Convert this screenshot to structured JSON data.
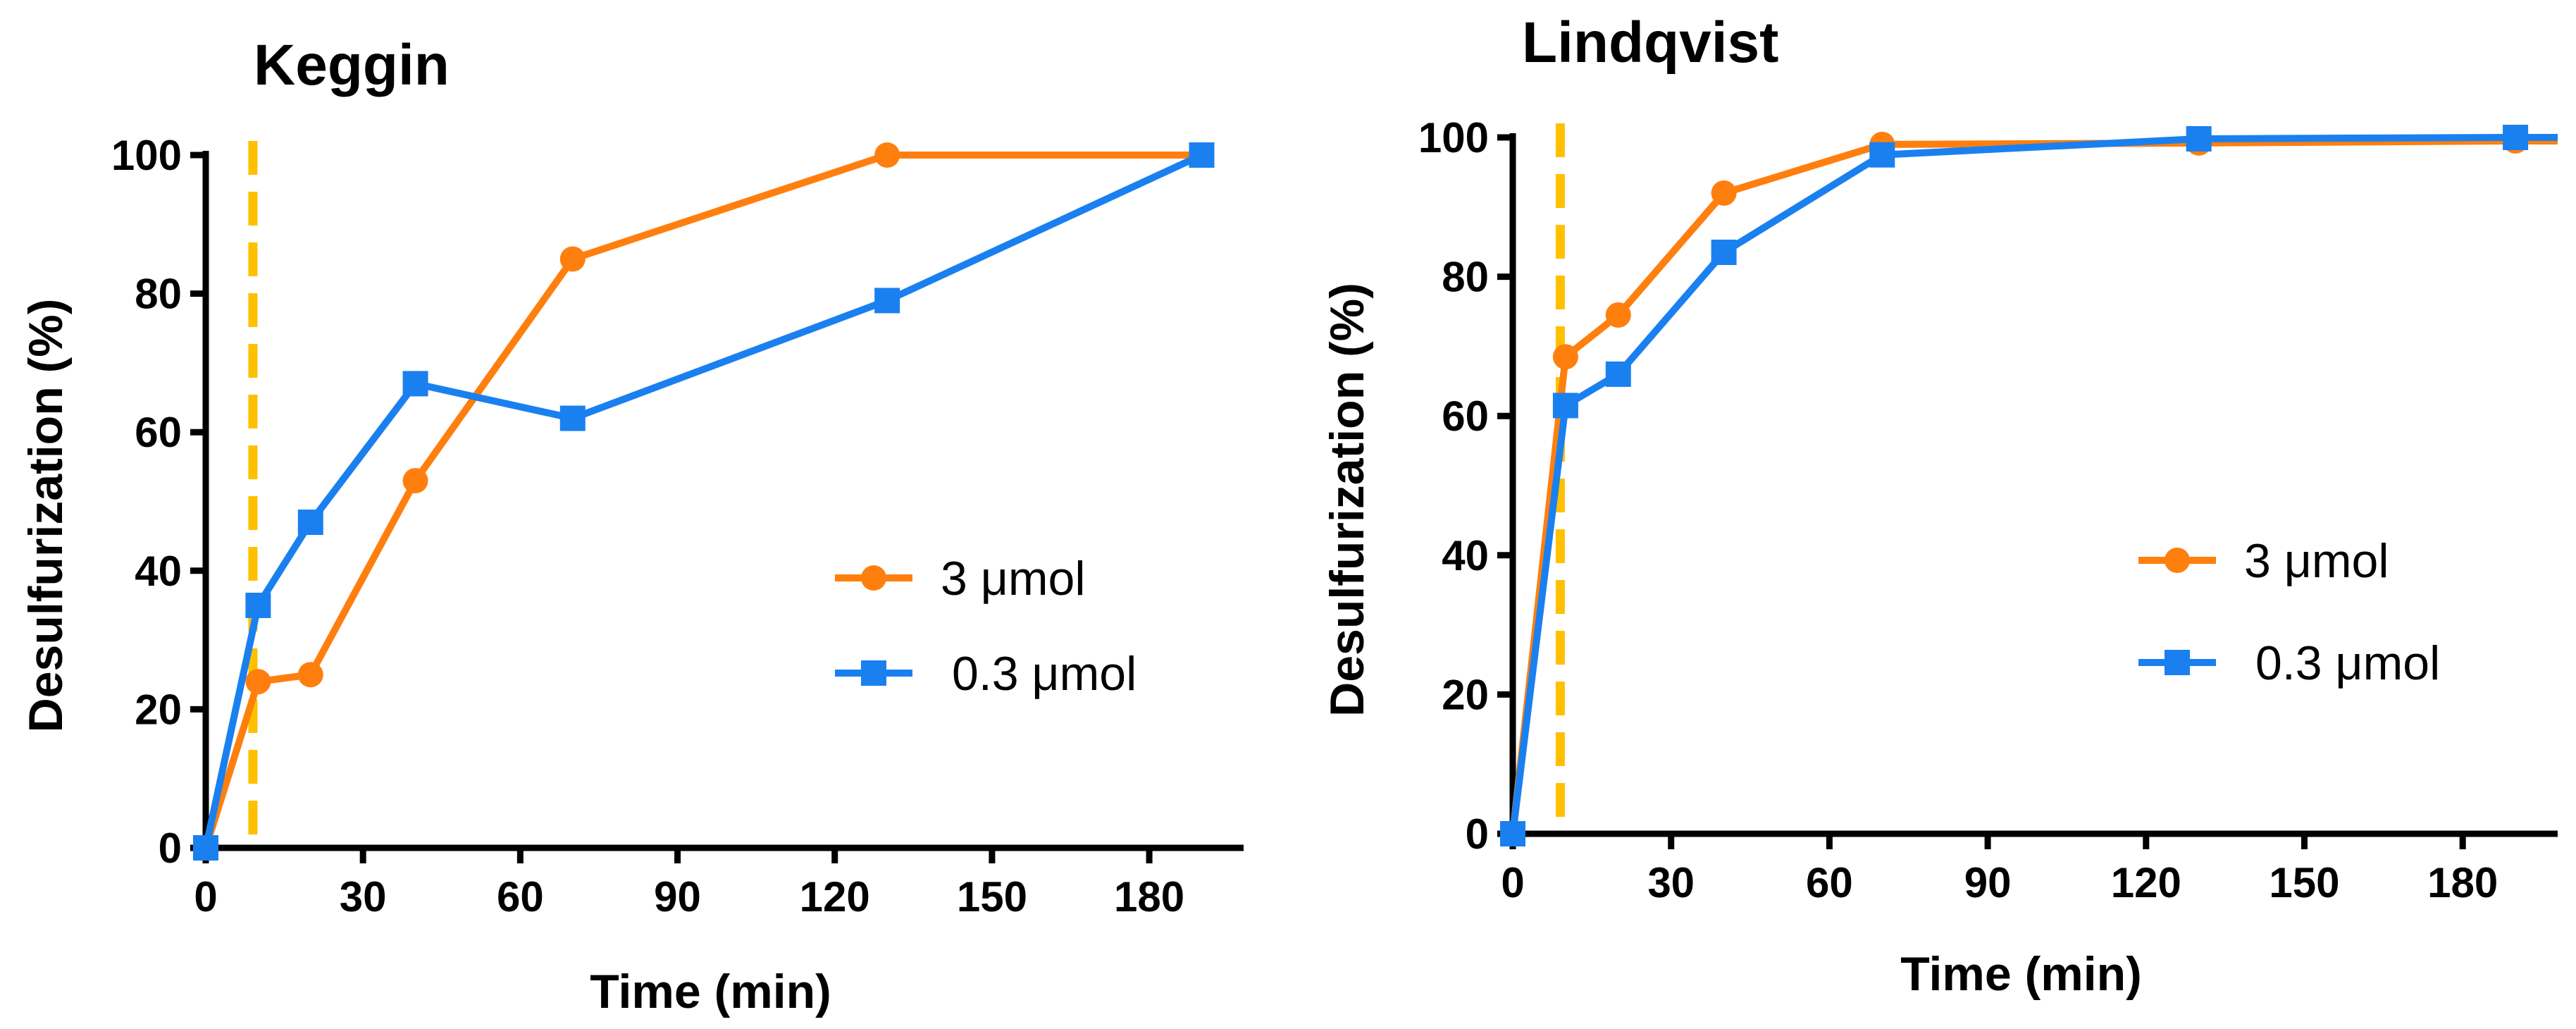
{
  "chart_data": [
    {
      "type": "line",
      "title": "Keggin",
      "xlabel": "Time (min)",
      "ylabel": "Desulfurization (%)",
      "xlim": [
        0,
        198
      ],
      "ylim": [
        0,
        100
      ],
      "xticks": [
        0,
        30,
        60,
        90,
        120,
        150,
        180
      ],
      "yticks": [
        0,
        20,
        40,
        60,
        80,
        100
      ],
      "legend_position": "center-right",
      "reference_line": {
        "x": 9,
        "style": "dashed",
        "color": "#FFC000"
      },
      "series": [
        {
          "name": "3 μmol",
          "marker": "circle",
          "color": "#FF7F0E",
          "x": [
            0,
            10,
            20,
            40,
            70,
            130,
            190
          ],
          "y": [
            0,
            24,
            25,
            53,
            85,
            100,
            100
          ]
        },
        {
          "name": "0.3 μmol",
          "marker": "square",
          "color": "#1A80F0",
          "x": [
            0,
            10,
            20,
            40,
            70,
            130,
            190
          ],
          "y": [
            0,
            35,
            47,
            67,
            62,
            79,
            100
          ]
        }
      ]
    },
    {
      "type": "line",
      "title": "Lindqvist",
      "xlabel": "Time (min)",
      "ylabel": "Desulfurization (%)",
      "xlim": [
        0,
        198
      ],
      "ylim": [
        0,
        100
      ],
      "xticks": [
        0,
        30,
        60,
        90,
        120,
        150,
        180
      ],
      "yticks": [
        0,
        20,
        40,
        60,
        80,
        100
      ],
      "legend_position": "center-right",
      "reference_line": {
        "x": 9,
        "style": "dashed",
        "color": "#FFC000"
      },
      "series": [
        {
          "name": "3 μmol",
          "marker": "circle",
          "color": "#FF7F0E",
          "x": [
            0,
            10,
            20,
            40,
            70,
            130,
            190,
            198
          ],
          "y": [
            0,
            68.5,
            74.5,
            92,
            99,
            99.2,
            99.5,
            99.5
          ]
        },
        {
          "name": "0.3 μmol",
          "marker": "square",
          "color": "#1A80F0",
          "x": [
            0,
            10,
            20,
            40,
            70,
            130,
            190,
            198
          ],
          "y": [
            0,
            61.5,
            66,
            83.5,
            97.5,
            99.8,
            100,
            100
          ]
        }
      ]
    }
  ]
}
